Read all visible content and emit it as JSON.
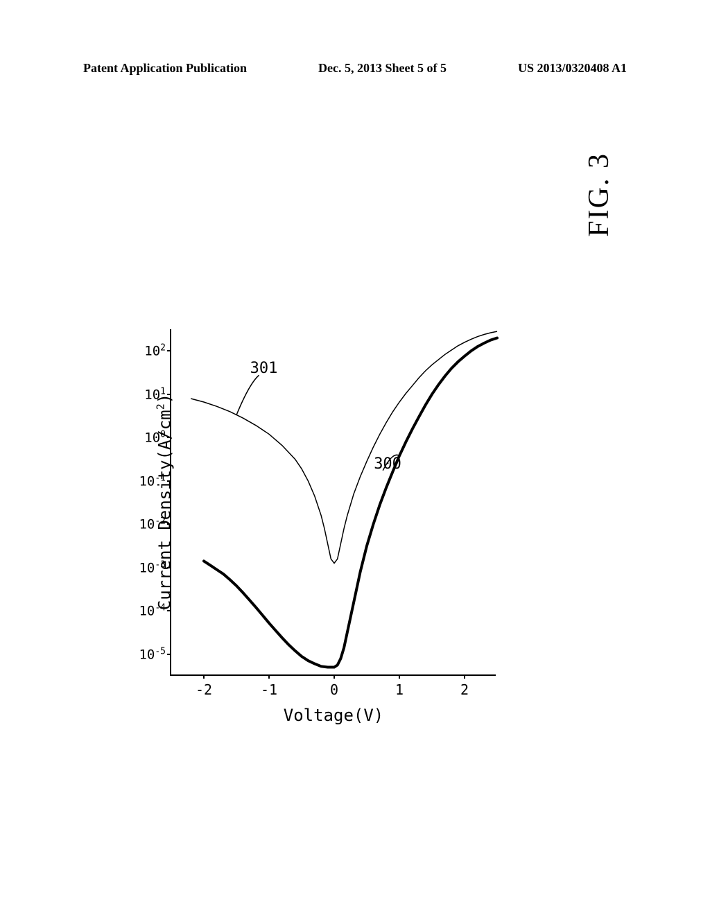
{
  "header": {
    "left": "Patent Application Publication",
    "center": "Dec. 5, 2013   Sheet 5 of 5",
    "right": "US 2013/0320408 A1"
  },
  "figure_label": "FIG. 3",
  "chart": {
    "type": "line",
    "xlabel": "Voltage(V)",
    "ylabel_prefix": "Current Density(A/cm",
    "ylabel_suffix": ")",
    "x_ticks": [
      -2,
      -1,
      0,
      1,
      2
    ],
    "y_tick_exponents": [
      -5,
      -4,
      -3,
      -2,
      -1,
      0,
      1,
      2
    ],
    "xlim": [
      -2.5,
      2.5
    ],
    "ylim_log": [
      -5.5,
      2.5
    ],
    "background_color": "#ffffff",
    "axis_color": "#000000",
    "curve_300": {
      "label": "300",
      "label_pos_x": 0.8,
      "label_pos_log_y": -0.6,
      "color": "#000000",
      "width_thick": 4,
      "points": [
        [
          -2.0,
          -2.85
        ],
        [
          -1.9,
          -2.95
        ],
        [
          -1.8,
          -3.05
        ],
        [
          -1.7,
          -3.15
        ],
        [
          -1.6,
          -3.28
        ],
        [
          -1.5,
          -3.42
        ],
        [
          -1.4,
          -3.58
        ],
        [
          -1.3,
          -3.75
        ],
        [
          -1.2,
          -3.92
        ],
        [
          -1.1,
          -4.1
        ],
        [
          -1.0,
          -4.28
        ],
        [
          -0.9,
          -4.45
        ],
        [
          -0.8,
          -4.62
        ],
        [
          -0.7,
          -4.78
        ],
        [
          -0.6,
          -4.92
        ],
        [
          -0.5,
          -5.05
        ],
        [
          -0.4,
          -5.15
        ],
        [
          -0.3,
          -5.22
        ],
        [
          -0.2,
          -5.28
        ],
        [
          -0.1,
          -5.3
        ],
        [
          0.0,
          -5.3
        ],
        [
          0.05,
          -5.25
        ],
        [
          0.1,
          -5.1
        ],
        [
          0.15,
          -4.85
        ],
        [
          0.2,
          -4.5
        ],
        [
          0.3,
          -3.8
        ],
        [
          0.4,
          -3.1
        ],
        [
          0.5,
          -2.5
        ],
        [
          0.6,
          -2.0
        ],
        [
          0.7,
          -1.55
        ],
        [
          0.8,
          -1.15
        ],
        [
          0.9,
          -0.78
        ],
        [
          1.0,
          -0.42
        ],
        [
          1.1,
          -0.1
        ],
        [
          1.2,
          0.2
        ],
        [
          1.3,
          0.48
        ],
        [
          1.4,
          0.75
        ],
        [
          1.5,
          1.0
        ],
        [
          1.6,
          1.22
        ],
        [
          1.7,
          1.42
        ],
        [
          1.8,
          1.6
        ],
        [
          1.9,
          1.75
        ],
        [
          2.0,
          1.88
        ],
        [
          2.1,
          2.0
        ],
        [
          2.2,
          2.1
        ],
        [
          2.3,
          2.18
        ],
        [
          2.4,
          2.25
        ],
        [
          2.5,
          2.3
        ]
      ]
    },
    "curve_301": {
      "label": "301",
      "label_pos_x": -1.1,
      "label_pos_log_y": 1.6,
      "color": "#000000",
      "width": 1.5,
      "points": [
        [
          -2.2,
          0.9
        ],
        [
          -2.0,
          0.82
        ],
        [
          -1.8,
          0.72
        ],
        [
          -1.6,
          0.6
        ],
        [
          -1.4,
          0.45
        ],
        [
          -1.2,
          0.28
        ],
        [
          -1.0,
          0.08
        ],
        [
          -0.8,
          -0.18
        ],
        [
          -0.6,
          -0.5
        ],
        [
          -0.5,
          -0.72
        ],
        [
          -0.4,
          -1.0
        ],
        [
          -0.3,
          -1.35
        ],
        [
          -0.2,
          -1.8
        ],
        [
          -0.15,
          -2.1
        ],
        [
          -0.1,
          -2.45
        ],
        [
          -0.05,
          -2.8
        ],
        [
          0.0,
          -2.9
        ],
        [
          0.05,
          -2.8
        ],
        [
          0.1,
          -2.45
        ],
        [
          0.15,
          -2.1
        ],
        [
          0.2,
          -1.8
        ],
        [
          0.3,
          -1.3
        ],
        [
          0.4,
          -0.9
        ],
        [
          0.5,
          -0.55
        ],
        [
          0.6,
          -0.22
        ],
        [
          0.7,
          0.08
        ],
        [
          0.8,
          0.35
        ],
        [
          0.9,
          0.6
        ],
        [
          1.0,
          0.82
        ],
        [
          1.1,
          1.02
        ],
        [
          1.2,
          1.2
        ],
        [
          1.3,
          1.38
        ],
        [
          1.4,
          1.54
        ],
        [
          1.5,
          1.68
        ],
        [
          1.6,
          1.8
        ],
        [
          1.7,
          1.92
        ],
        [
          1.8,
          2.02
        ],
        [
          1.9,
          2.12
        ],
        [
          2.0,
          2.2
        ],
        [
          2.1,
          2.27
        ],
        [
          2.2,
          2.33
        ],
        [
          2.3,
          2.38
        ],
        [
          2.4,
          2.42
        ],
        [
          2.5,
          2.45
        ]
      ]
    }
  }
}
